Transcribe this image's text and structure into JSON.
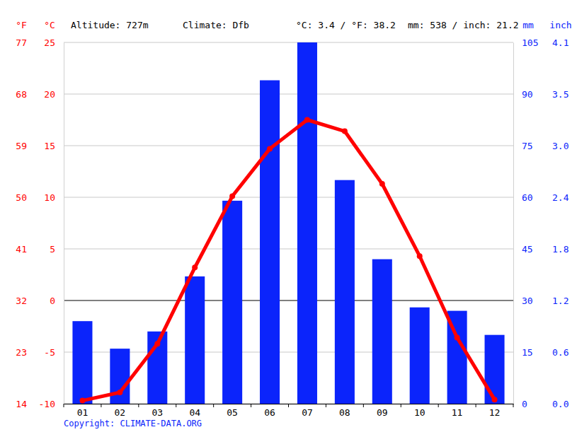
{
  "chart_data": {
    "type": "bar",
    "annotations": [
      "Altitude: 727m",
      "Climate: Dfb",
      "°C: 3.4 / °F: 38.2",
      "mm: 538 / inch: 21.2"
    ],
    "source": "Copyright: CLIMATE-DATA.ORG",
    "y_label": "°C",
    "y_label_alt": "°F",
    "y2_label": "mm",
    "y2_label_alt": "inch",
    "categories": [
      "01",
      "02",
      "03",
      "04",
      "05",
      "06",
      "07",
      "08",
      "09",
      "10",
      "11",
      "12"
    ],
    "series": [
      {
        "type": "bar",
        "axis": "y2",
        "color": "#0b24fb",
        "values": [
          24,
          16,
          21,
          37,
          59,
          94,
          105,
          65,
          42,
          28,
          27,
          20
        ]
      },
      {
        "type": "line",
        "color": "#ff0000",
        "marker": "circle",
        "values": [
          -9.7,
          -8.9,
          -4.2,
          3.2,
          10.1,
          14.7,
          17.5,
          16.4,
          11.3,
          4.3,
          -3.6,
          -9.6
        ]
      }
    ],
    "ylim": [
      -10,
      25
    ],
    "yticks": [
      -10,
      -5,
      0,
      5,
      10,
      15,
      20,
      25
    ],
    "yticks_alt": [
      {
        "value": -10,
        "label": "14"
      },
      {
        "value": -5,
        "label": "23"
      },
      {
        "value": 0,
        "label": "32"
      },
      {
        "value": 5,
        "label": "41"
      },
      {
        "value": 10,
        "label": "50"
      },
      {
        "value": 15,
        "label": "59"
      },
      {
        "value": 20,
        "label": "68"
      },
      {
        "value": 25,
        "label": "77"
      }
    ],
    "y2lim": [
      0,
      105
    ],
    "y2ticks": [
      0,
      15,
      30,
      45,
      60,
      75,
      90,
      105
    ],
    "y2ticks_alt": [
      {
        "value": 0,
        "label": "0.0"
      },
      {
        "value": 15,
        "label": "0.6"
      },
      {
        "value": 30,
        "label": "1.2"
      },
      {
        "value": 45,
        "label": "1.8"
      },
      {
        "value": 60,
        "label": "2.4"
      },
      {
        "value": 75,
        "label": "3.0"
      },
      {
        "value": 90,
        "label": "3.5"
      },
      {
        "value": 105,
        "label": "4.1"
      }
    ],
    "grid": true
  }
}
